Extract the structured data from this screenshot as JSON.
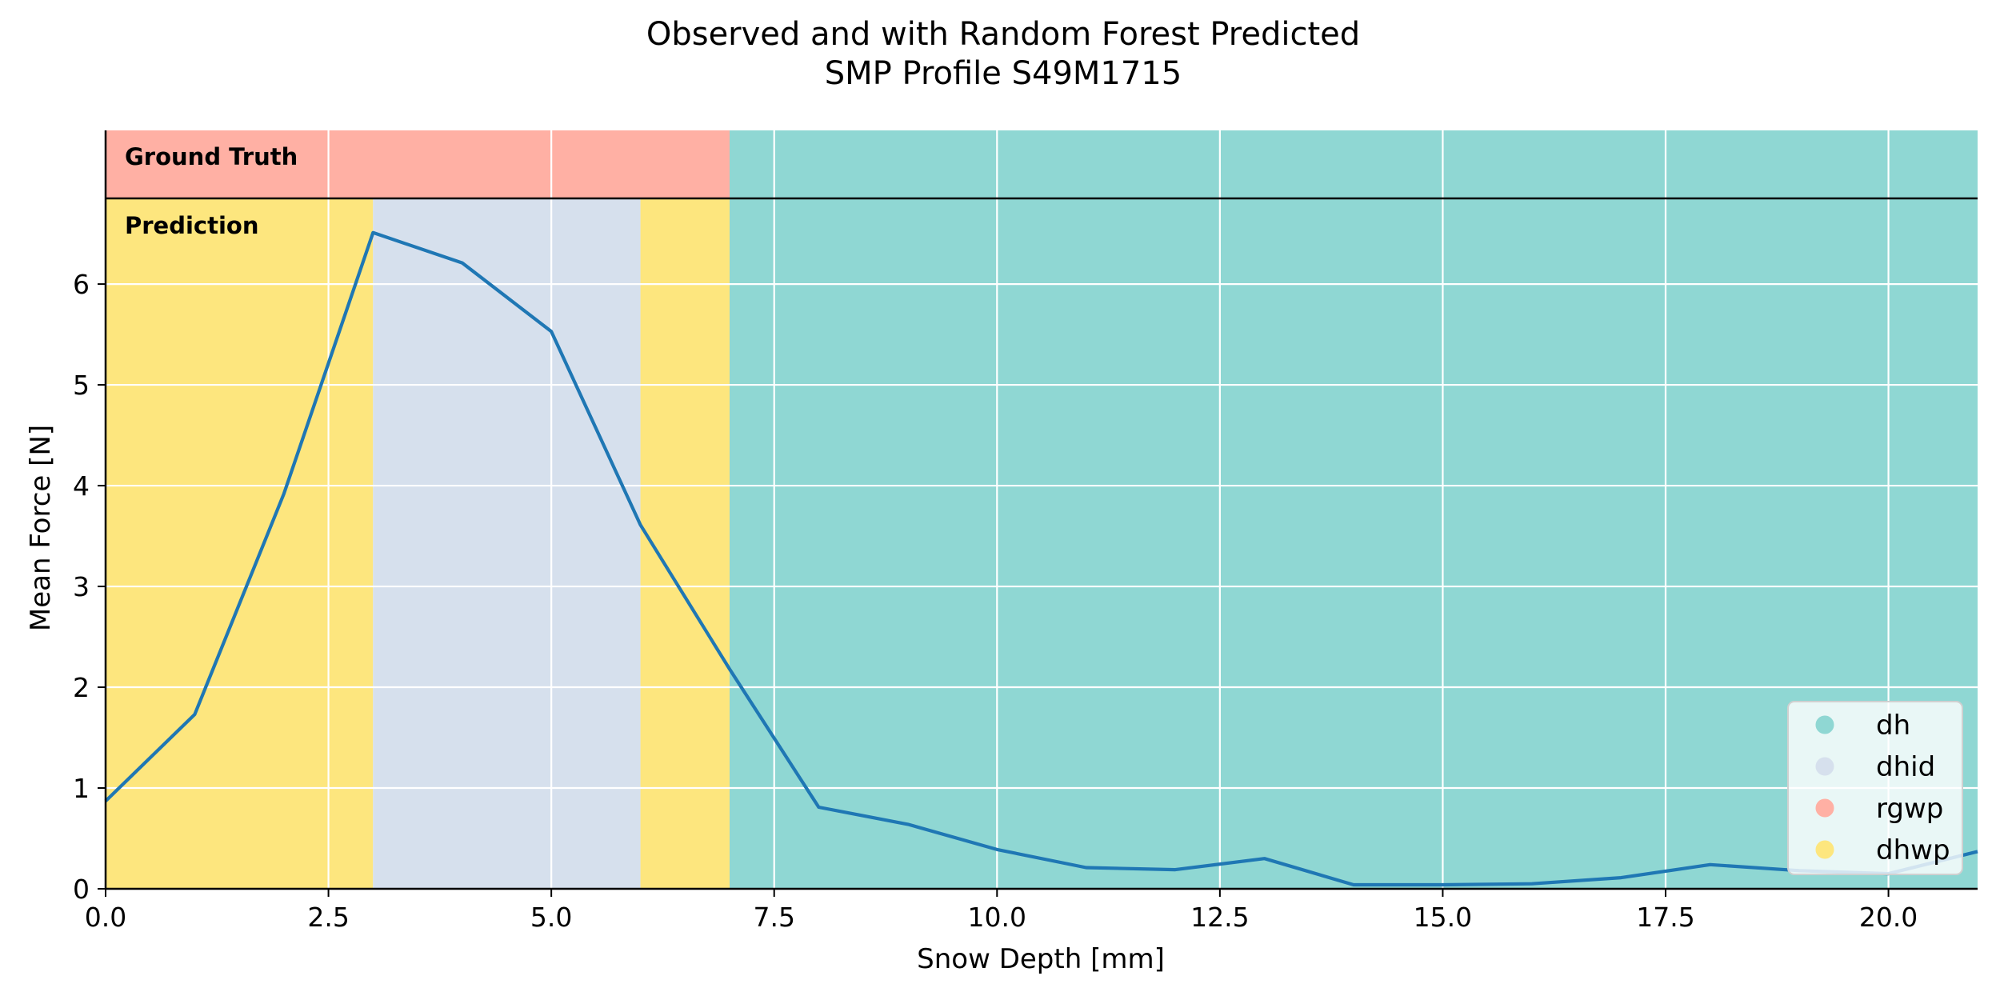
{
  "chart_data": {
    "type": "line",
    "title_lines": [
      "Observed and with Random Forest Predicted",
      "SMP Profile S49M1715"
    ],
    "xlabel": "Snow Depth [mm]",
    "ylabel": "Mean Force [N]",
    "xlim": [
      0,
      21
    ],
    "ylim": [
      0,
      6.85
    ],
    "xticks": [
      0,
      2.5,
      5,
      7.5,
      10,
      12.5,
      15,
      17.5,
      20
    ],
    "xtick_labels": [
      "0.0",
      "2.5",
      "5.0",
      "7.5",
      "10.0",
      "12.5",
      "15.0",
      "17.5",
      "20.0"
    ],
    "yticks": [
      0,
      1,
      2,
      3,
      4,
      5,
      6
    ],
    "ytick_labels": [
      "0",
      "1",
      "2",
      "3",
      "4",
      "5",
      "6"
    ],
    "grid": true,
    "series": [
      {
        "x": [
          0,
          1,
          2,
          3,
          4,
          5,
          6,
          7,
          8,
          9,
          10,
          11,
          12,
          13,
          14,
          15,
          16,
          17,
          18,
          19,
          20,
          21
        ],
        "values": [
          0.87,
          1.73,
          3.92,
          6.51,
          6.21,
          5.53,
          3.61,
          2.18,
          0.81,
          0.64,
          0.39,
          0.21,
          0.19,
          0.3,
          0.04,
          0.04,
          0.05,
          0.11,
          0.24,
          0.18,
          0.15,
          0.37
        ],
        "color": "#1f77b4"
      }
    ],
    "ground_truth": {
      "label": "Ground Truth",
      "segments": [
        {
          "start": 0,
          "end": 7,
          "class": "rgwp"
        },
        {
          "start": 7,
          "end": 21,
          "class": "dh"
        }
      ]
    },
    "prediction": {
      "label": "Prediction",
      "segments": [
        {
          "start": 0,
          "end": 3,
          "class": "dhwp"
        },
        {
          "start": 3,
          "end": 6,
          "class": "dhid"
        },
        {
          "start": 6,
          "end": 7,
          "class": "dhwp"
        },
        {
          "start": 7,
          "end": 21,
          "class": "dh"
        }
      ]
    },
    "classes": [
      {
        "name": "dh",
        "color": "#8fd7d3"
      },
      {
        "name": "dhid",
        "color": "#d6e0ed"
      },
      {
        "name": "rgwp",
        "color": "#ffb0a4"
      },
      {
        "name": "dhwp",
        "color": "#fde67e"
      }
    ],
    "legend_position": "lower-right"
  }
}
